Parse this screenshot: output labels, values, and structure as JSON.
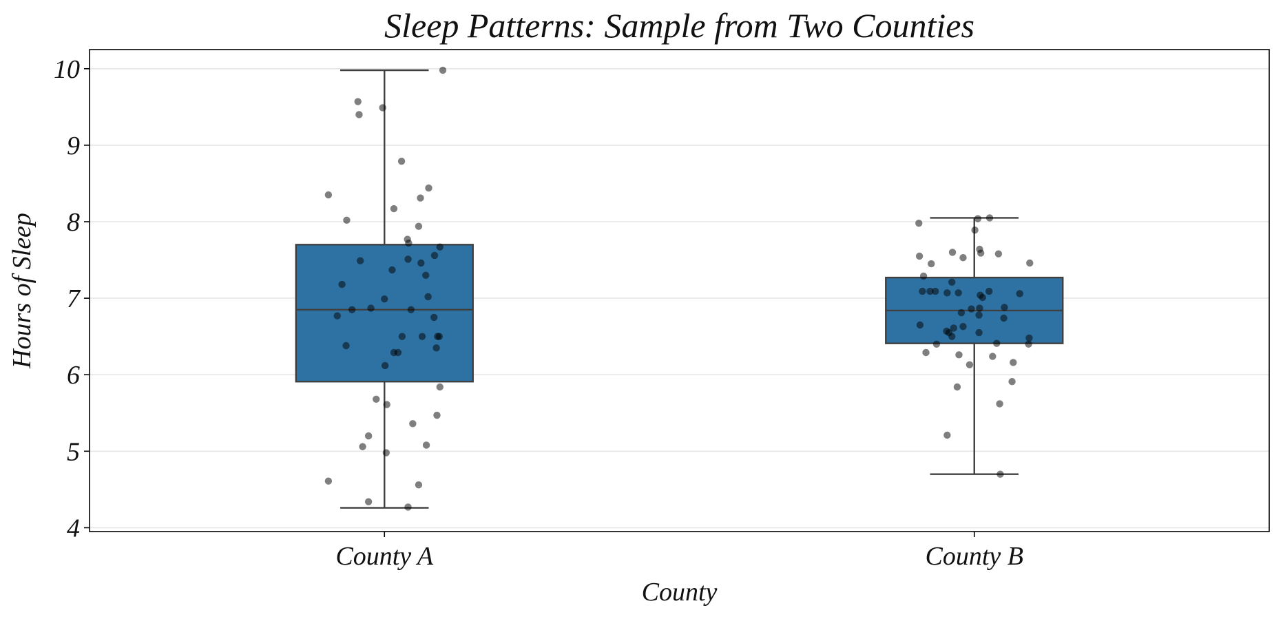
{
  "chart_data": {
    "type": "box",
    "title": "Sleep Patterns: Sample from Two Counties",
    "xlabel": "County",
    "ylabel": "Hours of Sleep",
    "categories": [
      "County A",
      "County B"
    ],
    "ylim": [
      3.95,
      10.25
    ],
    "yticks": [
      4,
      5,
      6,
      7,
      8,
      9,
      10
    ],
    "grid": "horizontal",
    "box_color": "#2e72a4",
    "point_color": "#000000",
    "boxes": [
      {
        "name": "County A",
        "whisker_low": 4.26,
        "q1": 5.91,
        "median": 6.85,
        "q3": 7.7,
        "whisker_high": 9.98
      },
      {
        "name": "County B",
        "whisker_low": 4.7,
        "q1": 6.41,
        "median": 6.84,
        "q3": 7.27,
        "whisker_high": 8.05
      }
    ],
    "points": [
      [
        [
          0.099,
          9.98
        ],
        [
          -0.045,
          9.57
        ],
        [
          -0.003,
          9.49
        ],
        [
          -0.043,
          9.4
        ],
        [
          0.029,
          8.79
        ],
        [
          -0.095,
          8.35
        ],
        [
          0.075,
          8.44
        ],
        [
          0.061,
          8.31
        ],
        [
          0.016,
          8.17
        ],
        [
          -0.064,
          8.02
        ],
        [
          0.058,
          7.94
        ],
        [
          0.039,
          7.77
        ],
        [
          0.041,
          7.72
        ],
        [
          0.094,
          7.67
        ],
        [
          0.085,
          7.56
        ],
        [
          0.04,
          7.51
        ],
        [
          -0.041,
          7.49
        ],
        [
          0.062,
          7.46
        ],
        [
          0.013,
          7.37
        ],
        [
          0.07,
          7.3
        ],
        [
          -0.072,
          7.18
        ],
        [
          0.074,
          7.02
        ],
        [
          0.0,
          6.99
        ],
        [
          -0.055,
          6.85
        ],
        [
          -0.023,
          6.87
        ],
        [
          0.045,
          6.85
        ],
        [
          -0.08,
          6.77
        ],
        [
          0.084,
          6.75
        ],
        [
          0.03,
          6.5
        ],
        [
          0.064,
          6.5
        ],
        [
          0.093,
          6.5
        ],
        [
          0.09,
          6.5
        ],
        [
          -0.065,
          6.38
        ],
        [
          0.088,
          6.35
        ],
        [
          0.016,
          6.29
        ],
        [
          0.023,
          6.29
        ],
        [
          0.001,
          6.12
        ],
        [
          0.094,
          5.84
        ],
        [
          -0.014,
          5.68
        ],
        [
          0.004,
          5.61
        ],
        [
          0.089,
          5.47
        ],
        [
          0.048,
          5.36
        ],
        [
          -0.027,
          5.2
        ],
        [
          -0.037,
          5.06
        ],
        [
          0.071,
          5.08
        ],
        [
          0.003,
          4.98
        ],
        [
          -0.095,
          4.61
        ],
        [
          0.058,
          4.56
        ],
        [
          -0.027,
          4.34
        ],
        [
          0.04,
          4.27
        ]
      ],
      [
        [
          0.026,
          8.05
        ],
        [
          0.006,
          8.04
        ],
        [
          -0.094,
          7.98
        ],
        [
          0.001,
          7.89
        ],
        [
          0.009,
          7.64
        ],
        [
          0.011,
          7.59
        ],
        [
          -0.037,
          7.6
        ],
        [
          -0.093,
          7.55
        ],
        [
          -0.019,
          7.53
        ],
        [
          0.041,
          7.58
        ],
        [
          0.094,
          7.46
        ],
        [
          -0.073,
          7.45
        ],
        [
          -0.086,
          7.29
        ],
        [
          -0.038,
          7.21
        ],
        [
          -0.066,
          7.09
        ],
        [
          -0.088,
          7.09
        ],
        [
          -0.075,
          7.09
        ],
        [
          0.025,
          7.09
        ],
        [
          -0.046,
          7.07
        ],
        [
          -0.027,
          7.07
        ],
        [
          0.01,
          7.04
        ],
        [
          0.077,
          7.06
        ],
        [
          0.014,
          7.01
        ],
        [
          0.051,
          6.88
        ],
        [
          0.009,
          6.87
        ],
        [
          -0.005,
          6.86
        ],
        [
          -0.022,
          6.81
        ],
        [
          0.008,
          6.78
        ],
        [
          0.05,
          6.74
        ],
        [
          -0.092,
          6.65
        ],
        [
          -0.035,
          6.61
        ],
        [
          -0.047,
          6.57
        ],
        [
          -0.043,
          6.55
        ],
        [
          -0.019,
          6.63
        ],
        [
          0.008,
          6.55
        ],
        [
          -0.038,
          6.5
        ],
        [
          0.093,
          6.48
        ],
        [
          -0.064,
          6.4
        ],
        [
          0.038,
          6.41
        ],
        [
          0.092,
          6.4
        ],
        [
          -0.082,
          6.29
        ],
        [
          -0.026,
          6.26
        ],
        [
          0.031,
          6.24
        ],
        [
          -0.008,
          6.13
        ],
        [
          0.066,
          6.16
        ],
        [
          0.064,
          5.91
        ],
        [
          -0.029,
          5.84
        ],
        [
          0.043,
          5.62
        ],
        [
          -0.046,
          5.21
        ],
        [
          0.044,
          4.7
        ]
      ]
    ]
  }
}
